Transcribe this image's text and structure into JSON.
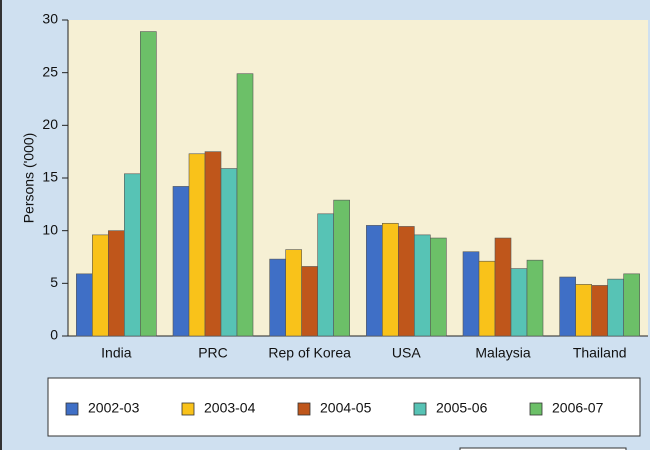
{
  "chart_data": {
    "type": "bar",
    "y_label": "Persons ('000)",
    "categories": [
      "India",
      "PRC",
      "Rep of Korea",
      "USA",
      "Malaysia",
      "Thailand"
    ],
    "series": [
      {
        "name": "2002-03",
        "color": "#3f6fc6",
        "values": [
          5.9,
          14.2,
          7.3,
          10.5,
          8.0,
          5.6
        ]
      },
      {
        "name": "2003-04",
        "color": "#f9c21a",
        "values": [
          9.6,
          17.3,
          8.2,
          10.7,
          7.1,
          4.9
        ]
      },
      {
        "name": "2004-05",
        "color": "#bf561b",
        "values": [
          10.0,
          17.5,
          6.6,
          10.4,
          9.3,
          4.8
        ]
      },
      {
        "name": "2005-06",
        "color": "#57c3b5",
        "values": [
          15.4,
          15.9,
          11.6,
          9.6,
          6.4,
          5.4
        ]
      },
      {
        "name": "2006-07",
        "color": "#6cc068",
        "values": [
          28.9,
          24.9,
          12.9,
          9.3,
          7.2,
          5.9
        ]
      }
    ],
    "ylim": [
      0,
      30
    ],
    "yticks": [
      0,
      5,
      10,
      15,
      20,
      25,
      30
    ],
    "legend": "bottom"
  }
}
